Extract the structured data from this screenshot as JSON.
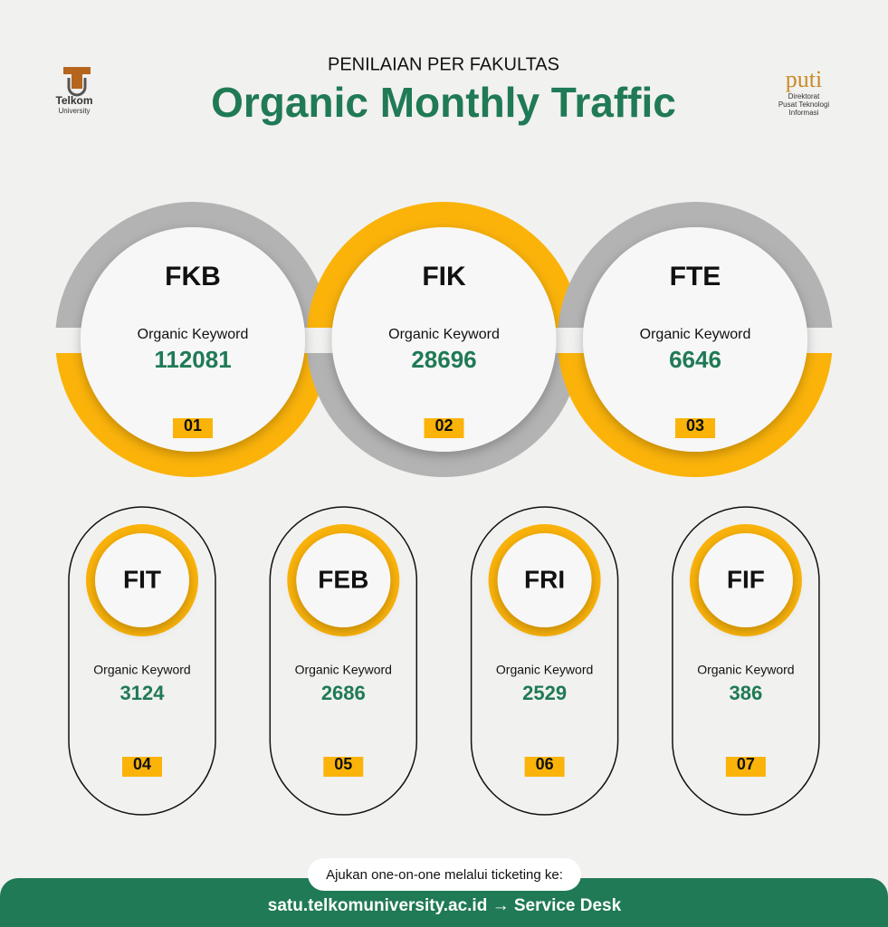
{
  "header": {
    "subtitle": "PENILAIAN PER FAKULTAS",
    "title": "Organic Monthly Traffic"
  },
  "logo_left": {
    "name": "Telkom",
    "sub": "University"
  },
  "logo_right": {
    "name": "puti",
    "lines": [
      "Direktorat",
      "Pusat Teknologi",
      "Informasi"
    ]
  },
  "faculties": [
    {
      "name": "FKB",
      "label": "Organic Keyword",
      "value": 112081,
      "rank": "01"
    },
    {
      "name": "FIK",
      "label": "Organic Keyword",
      "value": 28696,
      "rank": "02"
    },
    {
      "name": "FTE",
      "label": "Organic Keyword",
      "value": 6646,
      "rank": "03"
    },
    {
      "name": "FIT",
      "label": "Organic Keyword",
      "value": 3124,
      "rank": "04"
    },
    {
      "name": "FEB",
      "label": "Organic Keyword",
      "value": 2686,
      "rank": "05"
    },
    {
      "name": "FRI",
      "label": "Organic Keyword",
      "value": 2529,
      "rank": "06"
    },
    {
      "name": "FIF",
      "label": "Organic Keyword",
      "value": 386,
      "rank": "07"
    }
  ],
  "footer": {
    "note": "Ajukan one-on-one melalui ticketing ke:",
    "link": "satu.telkomuniversity.ac.id → Service Desk"
  }
}
